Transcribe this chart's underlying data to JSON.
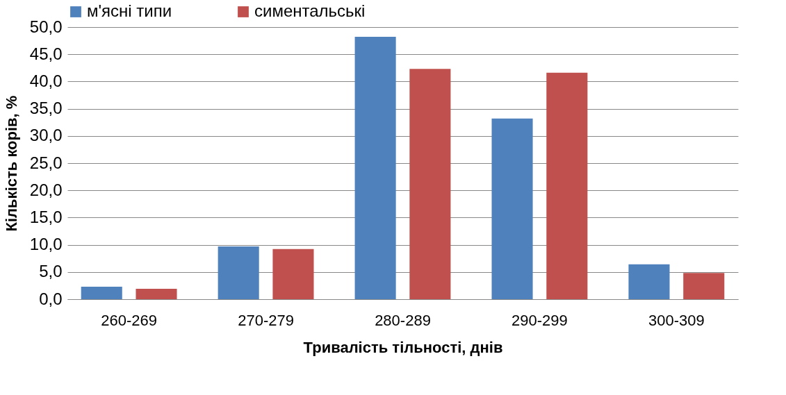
{
  "chart_data": {
    "type": "bar",
    "xlabel": "Тривалість тільності, днів",
    "ylabel": "Кількість корів, %",
    "categories": [
      "260-269",
      "270-279",
      "280-289",
      "290-299",
      "300-309"
    ],
    "series": [
      {
        "name": "м'ясні типи",
        "color": "#4f81bd",
        "values": [
          2.3,
          9.7,
          48.2,
          33.2,
          6.4
        ]
      },
      {
        "name": "симентальські",
        "color": "#c0504d",
        "values": [
          1.9,
          9.2,
          42.3,
          41.6,
          4.8
        ]
      }
    ],
    "ylim": [
      0,
      50
    ],
    "yticks": [
      {
        "value": 0,
        "label": "0,0"
      },
      {
        "value": 5,
        "label": "5,0"
      },
      {
        "value": 10,
        "label": "10,0"
      },
      {
        "value": 15,
        "label": "15,0"
      },
      {
        "value": 20,
        "label": "20,0"
      },
      {
        "value": 25,
        "label": "25,0"
      },
      {
        "value": 30,
        "label": "30,0"
      },
      {
        "value": 35,
        "label": "35,0"
      },
      {
        "value": 40,
        "label": "40,0"
      },
      {
        "value": 45,
        "label": "45,0"
      },
      {
        "value": 50,
        "label": "50,0"
      }
    ],
    "grid": "y",
    "legend": "top"
  }
}
